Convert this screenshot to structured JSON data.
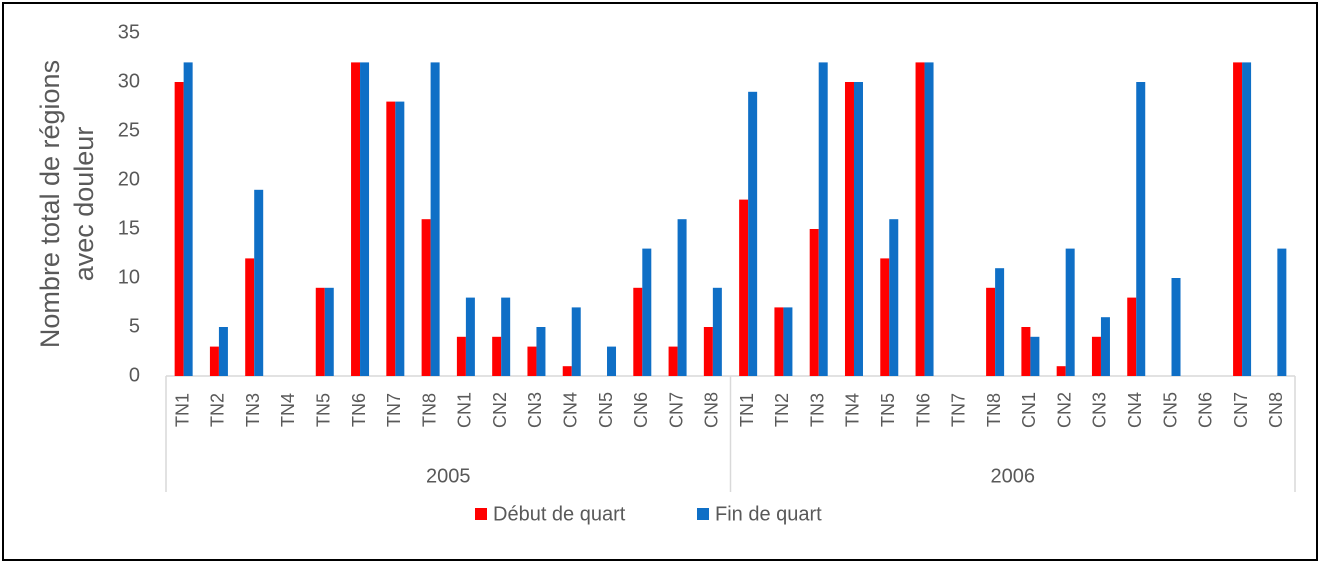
{
  "chart_data": {
    "type": "bar",
    "ylabel": [
      "Nombre total de régions",
      "avec douleur"
    ],
    "categories": [
      "TN1",
      "TN2",
      "TN3",
      "TN4",
      "TN5",
      "TN6",
      "TN7",
      "TN8",
      "CN1",
      "CN2",
      "CN3",
      "CN4",
      "CN5",
      "CN6",
      "CN7",
      "CN8",
      "TN1",
      "TN2",
      "TN3",
      "TN4",
      "TN5",
      "TN6",
      "TN7",
      "TN8",
      "CN1",
      "CN2",
      "CN3",
      "CN4",
      "CN5",
      "CN6",
      "CN7",
      "CN8"
    ],
    "groups": [
      "2005",
      "2006"
    ],
    "series": [
      {
        "name": "Début de quart",
        "color": "#ff0000",
        "values": [
          30,
          3,
          12,
          0,
          9,
          32,
          28,
          16,
          4,
          4,
          3,
          1,
          0,
          9,
          3,
          5,
          18,
          7,
          15,
          30,
          12,
          32,
          0,
          9,
          5,
          1,
          4,
          8,
          0,
          0,
          32,
          0
        ]
      },
      {
        "name": "Fin de quart",
        "color": "#0f6fc6",
        "values": [
          32,
          5,
          19,
          0,
          9,
          32,
          28,
          32,
          8,
          8,
          5,
          7,
          3,
          13,
          16,
          9,
          29,
          7,
          32,
          30,
          16,
          32,
          0,
          11,
          4,
          13,
          6,
          30,
          10,
          0,
          32,
          13
        ]
      }
    ],
    "ylim": [
      0,
      35
    ],
    "yticks": [
      0,
      5,
      10,
      15,
      20,
      25,
      30,
      35
    ],
    "grid": false,
    "legend": "bottom"
  }
}
